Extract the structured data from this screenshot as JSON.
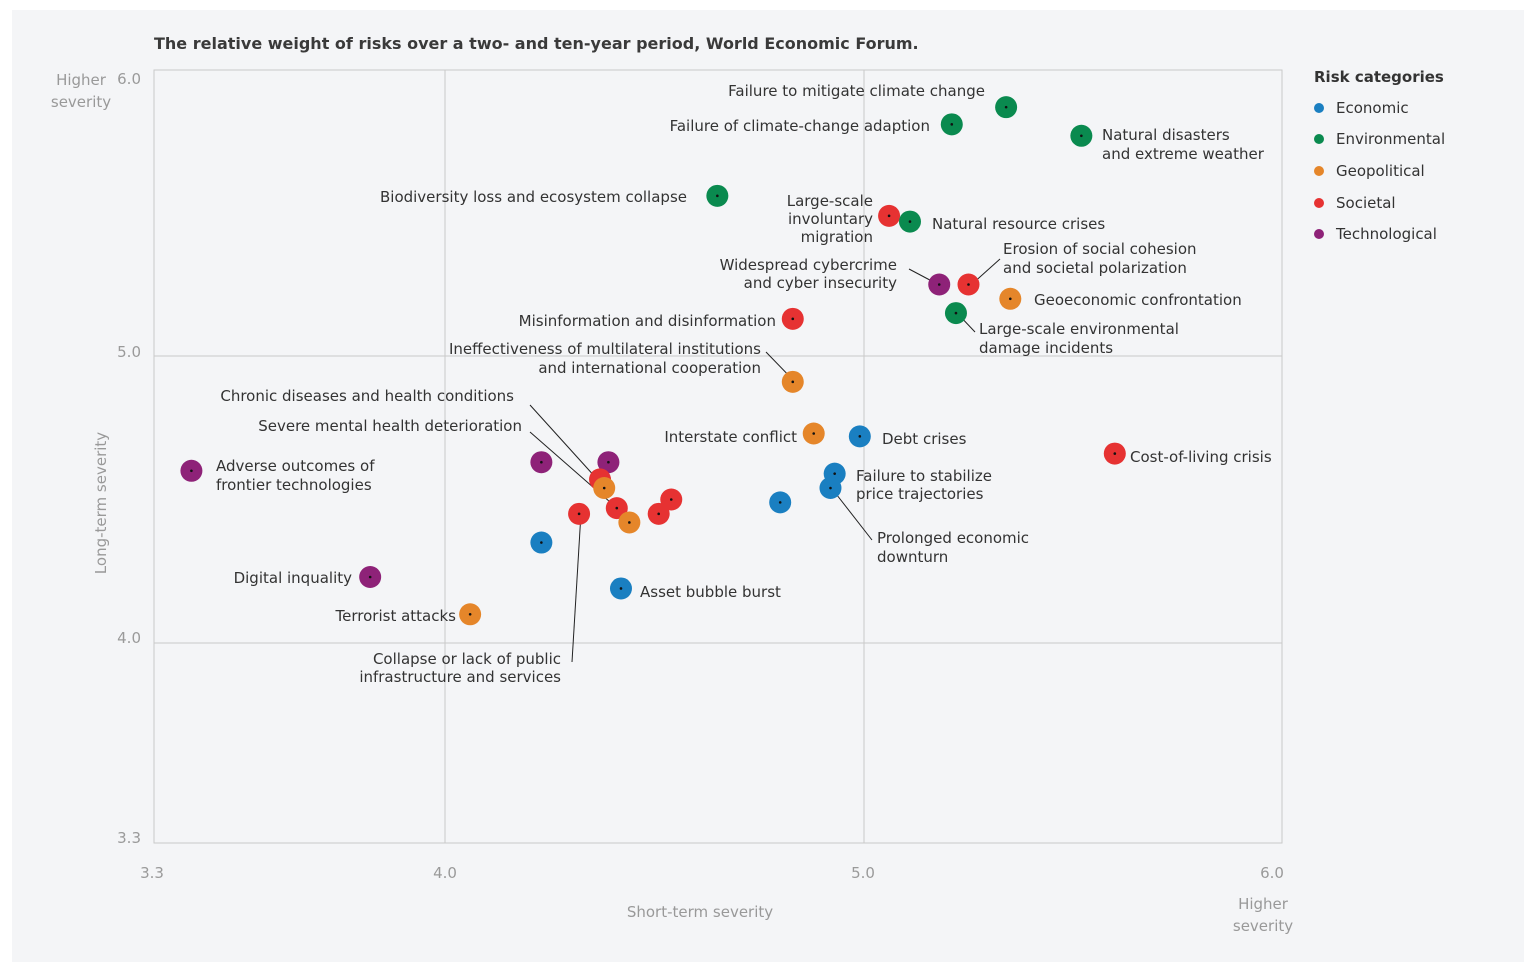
{
  "title": "The relative weight of risks over a two- and ten-year period, World Economic Forum.",
  "legend": {
    "title": "Risk categories",
    "items": [
      {
        "label": "Economic",
        "color": "#1a7fc1"
      },
      {
        "label": "Environmental",
        "color": "#0a8a4f"
      },
      {
        "label": "Geopolitical",
        "color": "#e5862a"
      },
      {
        "label": "Societal",
        "color": "#e63232"
      },
      {
        "label": "Technological",
        "color": "#8e2278"
      }
    ]
  },
  "axes": {
    "x_label": "Short-term severity",
    "y_label": "Long-term severity",
    "x_end_label": "Higher severity",
    "y_end_label": "Higher severity",
    "x_ticks": [
      "3.3",
      "4.0",
      "5.0",
      "6.0"
    ],
    "y_ticks": [
      "6.0",
      "5.0",
      "4.0",
      "3.3"
    ]
  },
  "chart_data": {
    "type": "scatter",
    "title": "The relative weight of risks over a two- and ten-year period, World Economic Forum.",
    "xlabel": "Short-term severity",
    "ylabel": "Long-term severity",
    "xlim": [
      3.3,
      6.0
    ],
    "ylim": [
      3.3,
      6.0
    ],
    "grid": true,
    "legend_placement": "right",
    "points": [
      {
        "label": "Failure to mitigate climate change",
        "category": "Environmental",
        "x": 5.34,
        "y": 5.87
      },
      {
        "label": "Failure of climate-change adaption",
        "category": "Environmental",
        "x": 5.21,
        "y": 5.81
      },
      {
        "label": "Natural disasters and extreme weather",
        "category": "Environmental",
        "x": 5.52,
        "y": 5.77
      },
      {
        "label": "Biodiversity loss and ecosystem collapse",
        "category": "Environmental",
        "x": 4.65,
        "y": 5.56
      },
      {
        "label": "Large-scale involuntary migration",
        "category": "Societal",
        "x": 5.06,
        "y": 5.49
      },
      {
        "label": "Natural resource crises",
        "category": "Environmental",
        "x": 5.11,
        "y": 5.47
      },
      {
        "label": "Erosion of social cohesion and societal polarization",
        "category": "Societal",
        "x": 5.25,
        "y": 5.25
      },
      {
        "label": "Widespread cybercrime and cyber insecurity",
        "category": "Technological",
        "x": 5.18,
        "y": 5.25
      },
      {
        "label": "Geoeconomic confrontation",
        "category": "Geopolitical",
        "x": 5.35,
        "y": 5.2
      },
      {
        "label": "Large-scale environmental damage incidents",
        "category": "Environmental",
        "x": 5.22,
        "y": 5.15
      },
      {
        "label": "Misinformation and disinformation",
        "category": "Societal",
        "x": 4.83,
        "y": 5.13
      },
      {
        "label": "Ineffectiveness of multilateral institutions and international cooperation",
        "category": "Geopolitical",
        "x": 4.83,
        "y": 4.91
      },
      {
        "label": "Interstate conflict",
        "category": "Geopolitical",
        "x": 4.88,
        "y": 4.73
      },
      {
        "label": "Debt crises",
        "category": "Economic",
        "x": 4.99,
        "y": 4.72
      },
      {
        "label": "Cost-of-living crisis",
        "category": "Societal",
        "x": 5.6,
        "y": 4.66
      },
      {
        "label": "Failure to stabilize price trajectories",
        "category": "Economic",
        "x": 4.93,
        "y": 4.59
      },
      {
        "label": "Prolonged economic downturn",
        "category": "Economic",
        "x": 4.92,
        "y": 4.54
      },
      {
        "label": "",
        "category": "Economic",
        "x": 4.8,
        "y": 4.49
      },
      {
        "label": "Adverse outcomes of frontier technologies",
        "category": "Technological",
        "x": 3.39,
        "y": 4.6
      },
      {
        "label": "",
        "category": "Technological",
        "x": 4.23,
        "y": 4.63
      },
      {
        "label": "",
        "category": "Technological",
        "x": 4.39,
        "y": 4.63
      },
      {
        "label": "Chronic diseases and health conditions",
        "category": "Societal",
        "x": 4.37,
        "y": 4.57
      },
      {
        "label": "",
        "category": "Geopolitical",
        "x": 4.38,
        "y": 4.54
      },
      {
        "label": "Severe mental health deterioration",
        "category": "Societal",
        "x": 4.41,
        "y": 4.47
      },
      {
        "label": "",
        "category": "Societal",
        "x": 4.54,
        "y": 4.5
      },
      {
        "label": "",
        "category": "Societal",
        "x": 4.51,
        "y": 4.45
      },
      {
        "label": "Collapse or lack of public infrastructure and services",
        "category": "Societal",
        "x": 4.32,
        "y": 4.45
      },
      {
        "label": "",
        "category": "Geopolitical",
        "x": 4.44,
        "y": 4.42
      },
      {
        "label": "",
        "category": "Economic",
        "x": 4.23,
        "y": 4.35
      },
      {
        "label": "Digital inquality",
        "category": "Technological",
        "x": 3.82,
        "y": 4.23
      },
      {
        "label": "Asset bubble burst",
        "category": "Economic",
        "x": 4.42,
        "y": 4.19
      },
      {
        "label": "Terrorist attacks",
        "category": "Geopolitical",
        "x": 4.06,
        "y": 4.1
      }
    ]
  }
}
